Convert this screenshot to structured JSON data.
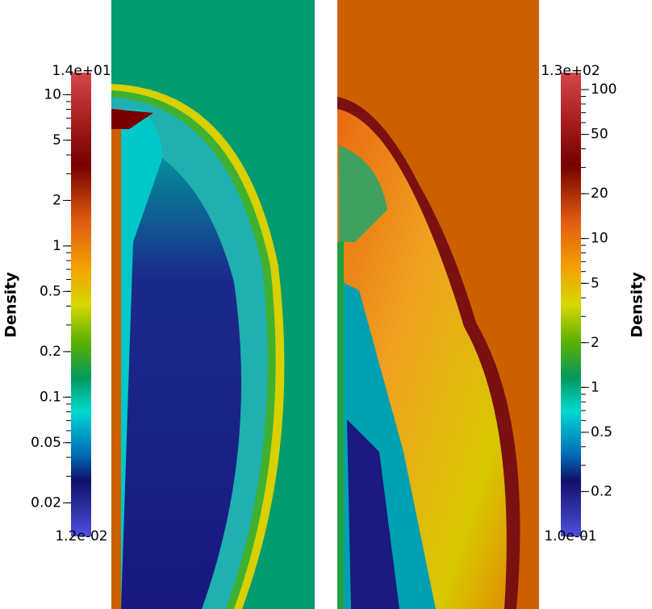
{
  "left_panel": {
    "colorbar": {
      "title": "Density",
      "log": true,
      "range": [
        {
          "value": 0.012,
          "label": "1.2e-02"
        },
        {
          "value": 14,
          "label": "1.4e+01"
        }
      ],
      "ticks": [
        0.02,
        0.05,
        0.1,
        0.2,
        0.5,
        1,
        2,
        5,
        10
      ]
    }
  },
  "right_panel": {
    "colorbar": {
      "title": "Density",
      "log": true,
      "range": [
        {
          "value": 0.1,
          "label": "1.0e-01"
        },
        {
          "value": 130,
          "label": "1.3e+02"
        }
      ],
      "ticks": [
        0.2,
        0.5,
        1,
        2,
        5,
        10,
        20,
        50,
        100
      ]
    }
  }
}
